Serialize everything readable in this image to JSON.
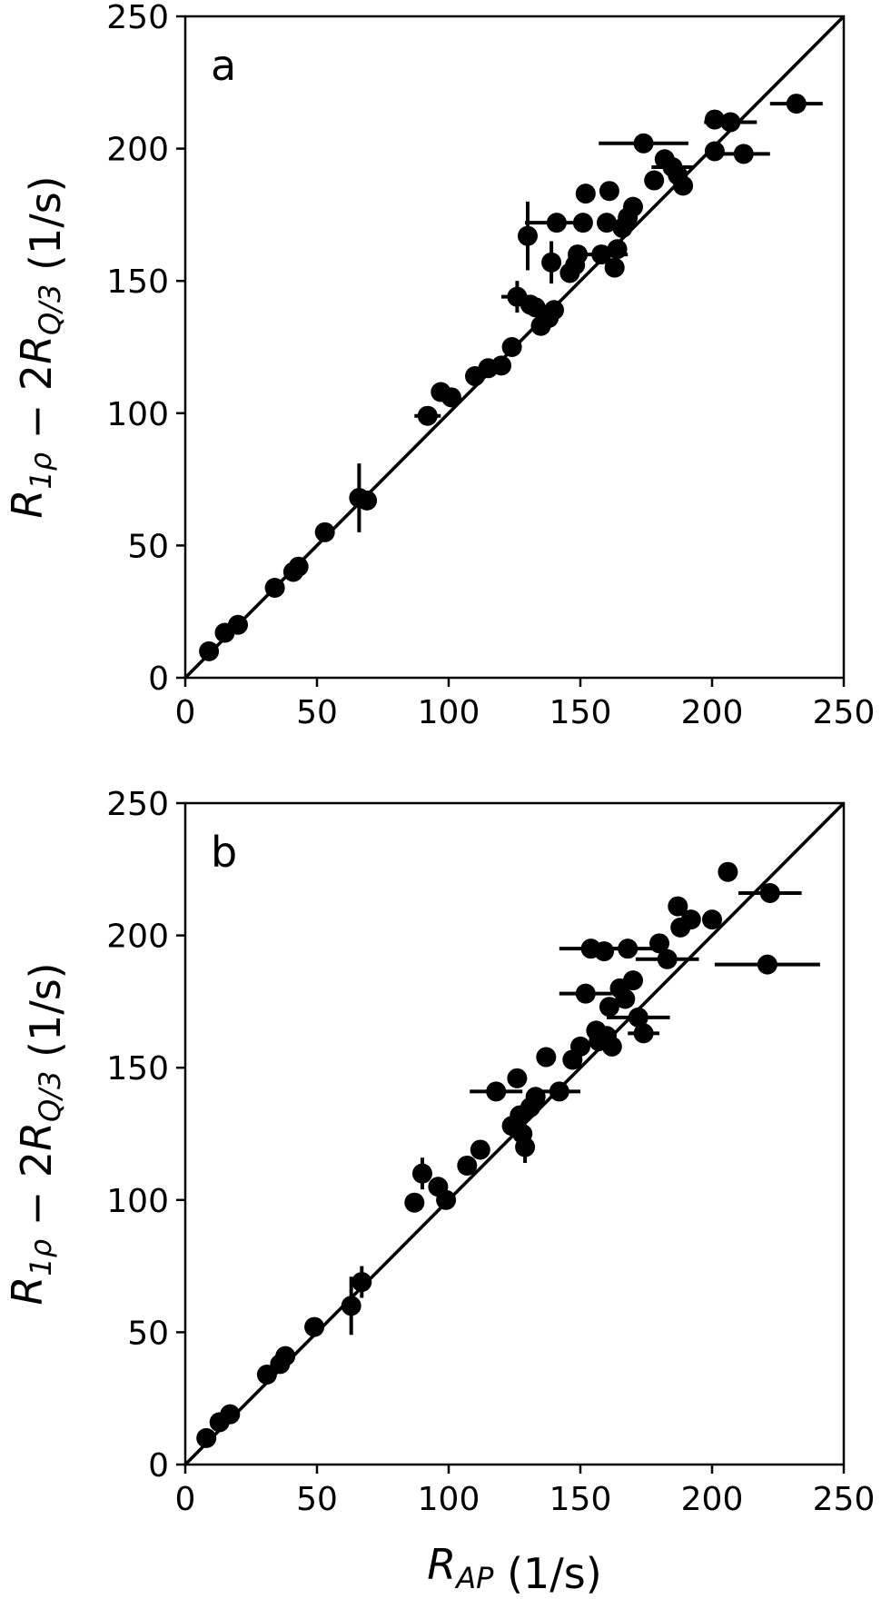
{
  "chart_data": [
    {
      "type": "scatter",
      "panel_label": "a",
      "xlabel": "R_AP (1/s)",
      "ylabel": "R_1ρ − 2R_Q/3 (1/s)",
      "xlim": [
        0,
        250
      ],
      "ylim": [
        0,
        250
      ],
      "xticks": [
        "0",
        "50",
        "100",
        "150",
        "200",
        "250"
      ],
      "yticks": [
        "0",
        "50",
        "100",
        "150",
        "200",
        "250"
      ],
      "reference_line": "y = x",
      "grid": false,
      "points": [
        {
          "x": 9,
          "y": 10
        },
        {
          "x": 15,
          "y": 17
        },
        {
          "x": 20,
          "y": 20
        },
        {
          "x": 34,
          "y": 34
        },
        {
          "x": 41,
          "y": 40
        },
        {
          "x": 43,
          "y": 42
        },
        {
          "x": 53,
          "y": 55
        },
        {
          "x": 66,
          "y": 68,
          "yerr": 13
        },
        {
          "x": 69,
          "y": 67
        },
        {
          "x": 92,
          "y": 99,
          "xerr": 5
        },
        {
          "x": 97,
          "y": 108
        },
        {
          "x": 101,
          "y": 106
        },
        {
          "x": 110,
          "y": 114
        },
        {
          "x": 115,
          "y": 117
        },
        {
          "x": 120,
          "y": 118
        },
        {
          "x": 124,
          "y": 125
        },
        {
          "x": 126,
          "y": 144,
          "xerr": 6,
          "yerr": 6
        },
        {
          "x": 131,
          "y": 141
        },
        {
          "x": 133,
          "y": 140
        },
        {
          "x": 135,
          "y": 133
        },
        {
          "x": 138,
          "y": 136
        },
        {
          "x": 139,
          "y": 157,
          "yerr": 8
        },
        {
          "x": 140,
          "y": 139
        },
        {
          "x": 130,
          "y": 167,
          "yerr": 13
        },
        {
          "x": 141,
          "y": 172,
          "xerr": 12
        },
        {
          "x": 146,
          "y": 153
        },
        {
          "x": 148,
          "y": 156
        },
        {
          "x": 149,
          "y": 160
        },
        {
          "x": 151,
          "y": 172
        },
        {
          "x": 152,
          "y": 183
        },
        {
          "x": 158,
          "y": 160,
          "xerr": 10
        },
        {
          "x": 160,
          "y": 172
        },
        {
          "x": 161,
          "y": 184
        },
        {
          "x": 163,
          "y": 155
        },
        {
          "x": 164,
          "y": 162
        },
        {
          "x": 166,
          "y": 170
        },
        {
          "x": 168,
          "y": 174
        },
        {
          "x": 170,
          "y": 178
        },
        {
          "x": 174,
          "y": 202,
          "xerr": 17
        },
        {
          "x": 178,
          "y": 188
        },
        {
          "x": 182,
          "y": 196
        },
        {
          "x": 185,
          "y": 193,
          "xerr": 8
        },
        {
          "x": 187,
          "y": 190
        },
        {
          "x": 189,
          "y": 186
        },
        {
          "x": 201,
          "y": 199
        },
        {
          "x": 201,
          "y": 211
        },
        {
          "x": 207,
          "y": 210,
          "xerr": 10
        },
        {
          "x": 212,
          "y": 198,
          "xerr": 10
        },
        {
          "x": 232,
          "y": 217,
          "xerr": 10
        }
      ]
    },
    {
      "type": "scatter",
      "panel_label": "b",
      "xlabel": "R_AP (1/s)",
      "ylabel": "R_1ρ − 2R_Q/3 (1/s)",
      "xlim": [
        0,
        250
      ],
      "ylim": [
        0,
        250
      ],
      "xticks": [
        "0",
        "50",
        "100",
        "150",
        "200",
        "250"
      ],
      "yticks": [
        "0",
        "50",
        "100",
        "150",
        "200",
        "250"
      ],
      "reference_line": "y = x",
      "grid": false,
      "points": [
        {
          "x": 8,
          "y": 10
        },
        {
          "x": 13,
          "y": 16
        },
        {
          "x": 17,
          "y": 19
        },
        {
          "x": 31,
          "y": 34
        },
        {
          "x": 36,
          "y": 38
        },
        {
          "x": 38,
          "y": 41
        },
        {
          "x": 49,
          "y": 52
        },
        {
          "x": 63,
          "y": 60,
          "yerr": 11
        },
        {
          "x": 67,
          "y": 69,
          "yerr": 6
        },
        {
          "x": 87,
          "y": 99
        },
        {
          "x": 90,
          "y": 110,
          "yerr": 6
        },
        {
          "x": 96,
          "y": 105
        },
        {
          "x": 99,
          "y": 100
        },
        {
          "x": 107,
          "y": 113
        },
        {
          "x": 112,
          "y": 119
        },
        {
          "x": 118,
          "y": 141,
          "xerr": 10
        },
        {
          "x": 124,
          "y": 128
        },
        {
          "x": 126,
          "y": 146
        },
        {
          "x": 127,
          "y": 132
        },
        {
          "x": 128,
          "y": 125
        },
        {
          "x": 129,
          "y": 120,
          "yerr": 6
        },
        {
          "x": 131,
          "y": 135
        },
        {
          "x": 133,
          "y": 139
        },
        {
          "x": 137,
          "y": 154
        },
        {
          "x": 142,
          "y": 141,
          "xerr": 8
        },
        {
          "x": 147,
          "y": 153
        },
        {
          "x": 150,
          "y": 158
        },
        {
          "x": 152,
          "y": 178,
          "xerr": 10
        },
        {
          "x": 154,
          "y": 195,
          "xerr": 12
        },
        {
          "x": 156,
          "y": 164
        },
        {
          "x": 157,
          "y": 160
        },
        {
          "x": 159,
          "y": 194
        },
        {
          "x": 160,
          "y": 162
        },
        {
          "x": 161,
          "y": 173
        },
        {
          "x": 162,
          "y": 158
        },
        {
          "x": 165,
          "y": 180
        },
        {
          "x": 167,
          "y": 176
        },
        {
          "x": 168,
          "y": 195,
          "xerr": 10
        },
        {
          "x": 170,
          "y": 183
        },
        {
          "x": 172,
          "y": 169,
          "xerr": 12
        },
        {
          "x": 174,
          "y": 163,
          "xerr": 6
        },
        {
          "x": 180,
          "y": 197
        },
        {
          "x": 183,
          "y": 191,
          "xerr": 12
        },
        {
          "x": 187,
          "y": 211
        },
        {
          "x": 188,
          "y": 203
        },
        {
          "x": 192,
          "y": 206
        },
        {
          "x": 200,
          "y": 206
        },
        {
          "x": 206,
          "y": 224
        },
        {
          "x": 222,
          "y": 216,
          "xerr": 12
        },
        {
          "x": 221,
          "y": 189,
          "xerr": 20
        }
      ]
    }
  ]
}
